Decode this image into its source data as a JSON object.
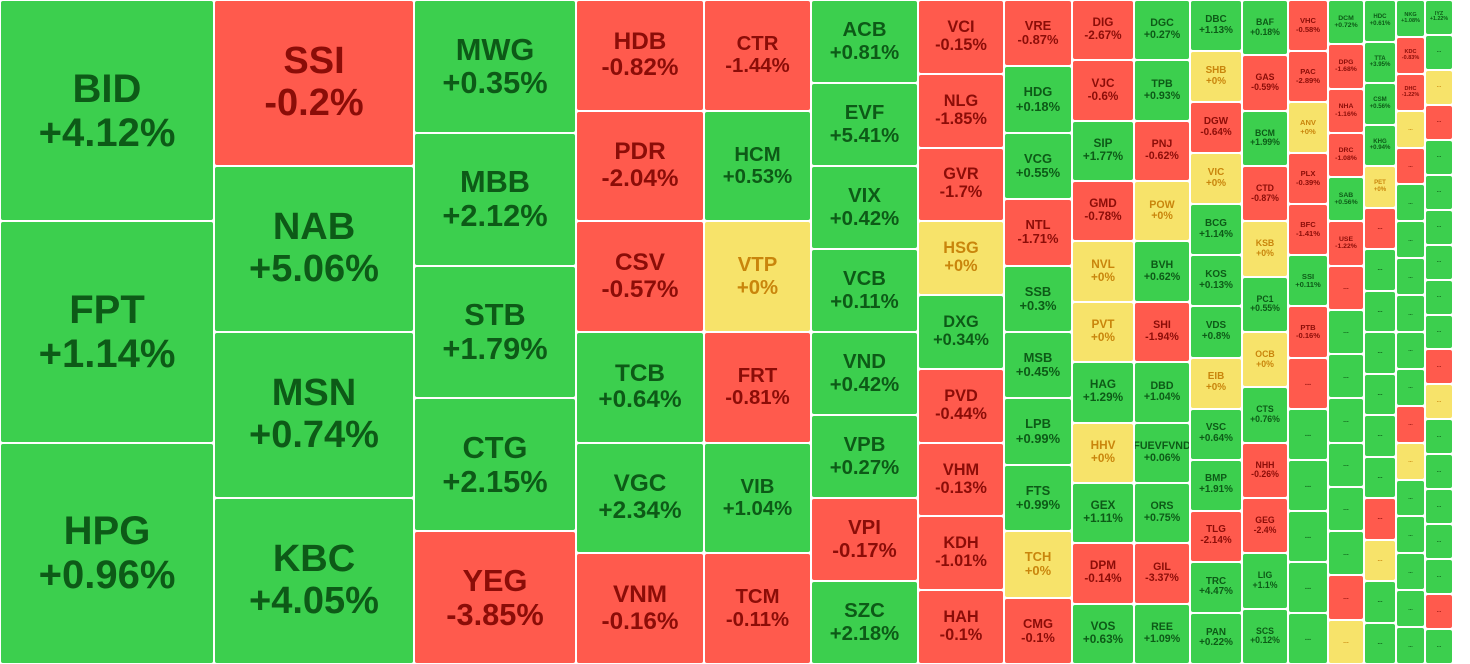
{
  "chart_data": {
    "type": "treemap",
    "colors": {
      "up": "#3ccf4e",
      "down": "#ff5a4d",
      "flat": "#f7e36a",
      "ceil": "#ff3dff"
    },
    "columns": [
      {
        "w": 214,
        "items": [
          [
            "BID",
            "+4.12%"
          ],
          [
            "FPT",
            "+1.14%"
          ],
          [
            "HPG",
            "+0.96%"
          ]
        ]
      },
      {
        "w": 200,
        "items": [
          [
            "SSI",
            "-0.2%"
          ],
          [
            "NAB",
            "+5.06%"
          ],
          [
            "MSN",
            "+0.74%"
          ],
          [
            "KBC",
            "+4.05%"
          ]
        ]
      },
      {
        "w": 162,
        "items": [
          [
            "MWG",
            "+0.35%"
          ],
          [
            "MBB",
            "+2.12%"
          ],
          [
            "STB",
            "+1.79%"
          ],
          [
            "CTG",
            "+2.15%"
          ],
          [
            "YEG",
            "-3.85%"
          ]
        ]
      },
      {
        "w": 128,
        "items": [
          [
            "HDB",
            "-0.82%"
          ],
          [
            "PDR",
            "-2.04%"
          ],
          [
            "CSV",
            "-0.57%"
          ],
          [
            "TCB",
            "+0.64%"
          ],
          [
            "VGC",
            "+2.34%"
          ],
          [
            "VNM",
            "-0.16%"
          ]
        ]
      },
      {
        "w": 107,
        "items": [
          [
            "CTR",
            "-1.44%"
          ],
          [
            "HCM",
            "+0.53%"
          ],
          [
            "VTP",
            "+0%"
          ],
          [
            "FRT",
            "-0.81%"
          ],
          [
            "VIB",
            "+1.04%"
          ],
          [
            "TCM",
            "-0.11%"
          ]
        ]
      }
    ],
    "remainder": [
      {
        "w": 107,
        "items": [
          [
            "ACB",
            "+0.81%"
          ],
          [
            "EVF",
            "+5.41%"
          ],
          [
            "VIX",
            "+0.42%"
          ],
          [
            "VCB",
            "+0.11%"
          ],
          [
            "VND",
            "+0.42%"
          ],
          [
            "VPB",
            "+0.27%"
          ],
          [
            "VPI",
            "-0.17%"
          ],
          [
            "SZC",
            "+2.18%"
          ]
        ]
      },
      {
        "w": 86,
        "items": [
          [
            "VCI",
            "-0.15%"
          ],
          [
            "NLG",
            "-1.85%"
          ],
          [
            "GVR",
            "-1.7%"
          ],
          [
            "HSG",
            "+0%"
          ],
          [
            "DXG",
            "+0.34%"
          ],
          [
            "PVD",
            "-0.44%"
          ],
          [
            "VHM",
            "-0.13%"
          ],
          [
            "KDH",
            "-1.01%"
          ],
          [
            "HAH",
            "-0.1%"
          ]
        ]
      },
      {
        "w": 68,
        "items": [
          [
            "VRE",
            "-0.87%"
          ],
          [
            "HDG",
            "+0.18%"
          ],
          [
            "VCG",
            "+0.55%"
          ],
          [
            "NTL",
            "-1.71%"
          ],
          [
            "SSB",
            "+0.3%"
          ],
          [
            "MSB",
            "+0.45%"
          ],
          [
            "LPB",
            "+0.99%"
          ],
          [
            "FTS",
            "+0.99%"
          ],
          [
            "TCH",
            "+0%"
          ],
          [
            "CMG",
            "-0.1%"
          ]
        ]
      },
      {
        "w": 62,
        "items": [
          [
            "DIG",
            "-2.67%"
          ],
          [
            "VJC",
            "-0.6%"
          ],
          [
            "SIP",
            "+1.77%"
          ],
          [
            "GMD",
            "-0.78%"
          ],
          [
            "NVL",
            "+0%"
          ],
          [
            "PVT",
            "+0%"
          ],
          [
            "HAG",
            "+1.29%"
          ],
          [
            "HHV",
            "+0%"
          ],
          [
            "GEX",
            "+1.11%"
          ],
          [
            "DPM",
            "-0.14%"
          ],
          [
            "VOS",
            "+0.63%"
          ]
        ]
      },
      {
        "w": 56,
        "items": [
          [
            "DGC",
            "+0.27%"
          ],
          [
            "TPB",
            "+0.93%"
          ],
          [
            "PNJ",
            "-0.62%"
          ],
          [
            "POW",
            "+0%"
          ],
          [
            "BVH",
            "+0.62%"
          ],
          [
            "SHI",
            "-1.94%"
          ],
          [
            "DBD",
            "+1.04%"
          ],
          [
            "FUEVFVND",
            "+0.06%"
          ],
          [
            "ORS",
            "+0.75%"
          ],
          [
            "GIL",
            "-3.37%"
          ],
          [
            "REE",
            "+1.09%"
          ]
        ]
      },
      {
        "w": 52,
        "items": [
          [
            "DBC",
            "+1.13%"
          ],
          [
            "SHB",
            "+0%"
          ],
          [
            "DGW",
            "-0.64%"
          ],
          [
            "VIC",
            "+0%"
          ],
          [
            "BCG",
            "+1.14%"
          ],
          [
            "KOS",
            "+0.13%"
          ],
          [
            "VDS",
            "+0.8%"
          ],
          [
            "EIB",
            "+0%"
          ],
          [
            "VSC",
            "+0.64%"
          ],
          [
            "BMP",
            "+1.91%"
          ],
          [
            "TLG",
            "-2.14%"
          ],
          [
            "TRC",
            "+4.47%"
          ],
          [
            "PAN",
            "+0.22%"
          ]
        ]
      },
      {
        "w": 46,
        "items": [
          [
            "BAF",
            "+0.18%"
          ],
          [
            "GAS",
            "-0.59%"
          ],
          [
            "BCM",
            "+1.99%"
          ],
          [
            "CTD",
            "-0.87%"
          ],
          [
            "KSB",
            "+0%"
          ],
          [
            "PC1",
            "+0.55%"
          ],
          [
            "OCB",
            "+0%"
          ],
          [
            "CTS",
            "+0.76%"
          ],
          [
            "NHH",
            "-0.26%"
          ],
          [
            "GEG",
            "-2.4%"
          ],
          [
            "LIG",
            "+1.1%"
          ],
          [
            "SCS",
            "+0.12%"
          ]
        ]
      },
      {
        "w": 40,
        "items": [
          [
            "VHC",
            "-0.58%"
          ],
          [
            "PAC",
            "-2.89%"
          ],
          [
            "ANV",
            "+0%"
          ],
          [
            "PLX",
            "-0.39%"
          ],
          [
            "BFC",
            "-1.41%"
          ],
          [
            "SSI",
            "+0.11%"
          ],
          [
            "PTB",
            "-0.16%"
          ],
          [
            "...",
            ""
          ],
          [
            "...",
            ""
          ],
          [
            "...",
            ""
          ],
          [
            "...",
            ""
          ],
          [
            "...",
            ""
          ],
          [
            "...",
            ""
          ]
        ]
      },
      {
        "w": 36,
        "items": [
          [
            "DCM",
            "+0.72%"
          ],
          [
            "DPG",
            "-1.68%"
          ],
          [
            "NHA",
            "-1.16%"
          ],
          [
            "DRC",
            "-1.08%"
          ],
          [
            "SAB",
            "+0.56%"
          ],
          [
            "USE",
            "-1.22%"
          ],
          [
            "...",
            ""
          ],
          [
            "...",
            ""
          ],
          [
            "...",
            ""
          ],
          [
            "...",
            ""
          ],
          [
            "...",
            ""
          ],
          [
            "...",
            ""
          ],
          [
            "...",
            ""
          ],
          [
            "...",
            ""
          ],
          [
            "...",
            ""
          ]
        ]
      },
      {
        "w": 32,
        "items": [
          [
            "HDC",
            "+0.61%"
          ],
          [
            "TTA",
            "+3.95%"
          ],
          [
            "CSM",
            "+0.56%"
          ],
          [
            "KHG",
            "+0.94%"
          ],
          [
            "PET",
            "+0%"
          ],
          [
            "...",
            ""
          ],
          [
            "...",
            ""
          ],
          [
            "...",
            ""
          ],
          [
            "...",
            ""
          ],
          [
            "...",
            ""
          ],
          [
            "...",
            ""
          ],
          [
            "...",
            ""
          ],
          [
            "...",
            ""
          ],
          [
            "...",
            ""
          ],
          [
            "...",
            ""
          ],
          [
            "...",
            ""
          ]
        ]
      },
      {
        "w": 29,
        "items": [
          [
            "NKG",
            "+1.08%"
          ],
          [
            "KDC",
            "-0.83%"
          ],
          [
            "DHC",
            "-1.22%"
          ],
          [
            "...",
            ""
          ],
          [
            "...",
            ""
          ],
          [
            "...",
            ""
          ],
          [
            "...",
            ""
          ],
          [
            "...",
            ""
          ],
          [
            "...",
            ""
          ],
          [
            "...",
            ""
          ],
          [
            "...",
            ""
          ],
          [
            "...",
            ""
          ],
          [
            "...",
            ""
          ],
          [
            "...",
            ""
          ],
          [
            "...",
            ""
          ],
          [
            "...",
            ""
          ],
          [
            "...",
            ""
          ],
          [
            "...",
            ""
          ]
        ]
      },
      {
        "w": 28,
        "items": [
          [
            "IYZ",
            "+1.22%"
          ],
          [
            "...",
            ""
          ],
          [
            "...",
            ""
          ],
          [
            "...",
            ""
          ],
          [
            "...",
            ""
          ],
          [
            "...",
            ""
          ],
          [
            "...",
            ""
          ],
          [
            "...",
            ""
          ],
          [
            "...",
            ""
          ],
          [
            "...",
            ""
          ],
          [
            "...",
            ""
          ],
          [
            "...",
            ""
          ],
          [
            "...",
            ""
          ],
          [
            "...",
            ""
          ],
          [
            "...",
            ""
          ],
          [
            "...",
            ""
          ],
          [
            "...",
            ""
          ],
          [
            "...",
            ""
          ],
          [
            "...",
            ""
          ]
        ]
      }
    ]
  }
}
